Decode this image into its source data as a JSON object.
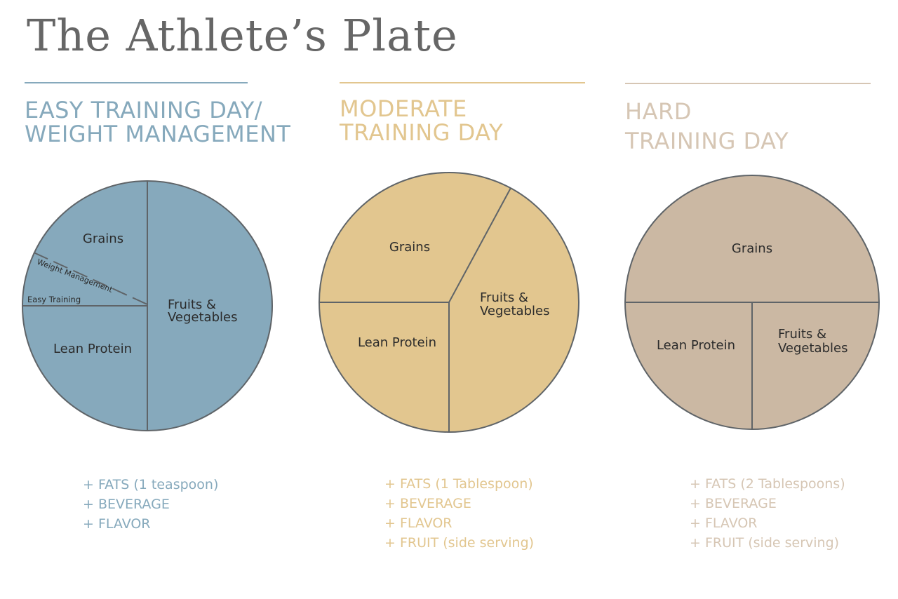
{
  "title": "The Athlete’s Plate",
  "plates": [
    {
      "heading": [
        "EASY TRAINING DAY/",
        "WEIGHT MANAGEMENT"
      ],
      "color": "#86a9bc",
      "text_color": "#86a9bc",
      "labels": {
        "grains": "Grains",
        "weight_management": "Weight Management",
        "easy_training": "Easy Training",
        "fruits_vegetables": [
          "Fruits &",
          "Vegetables"
        ],
        "lean_protein": "Lean Protein"
      },
      "extras": [
        "+ FATS (1 teaspoon)",
        "+ BEVERAGE",
        "+ FLAVOR"
      ]
    },
    {
      "heading": [
        "MODERATE",
        "TRAINING DAY"
      ],
      "color": "#e2c68f",
      "text_color": "#e2c68f",
      "labels": {
        "grains": "Grains",
        "fruits_vegetables": [
          "Fruits &",
          "Vegetables"
        ],
        "lean_protein": "Lean Protein"
      },
      "extras": [
        "+ FATS (1 Tablespoon)",
        "+ BEVERAGE",
        "+ FLAVOR",
        "+ FRUIT (side serving)"
      ]
    },
    {
      "heading": [
        "HARD",
        "TRAINING DAY"
      ],
      "color": "#cbb8a3",
      "text_color": "#d6c6b4",
      "labels": {
        "grains": "Grains",
        "lean_protein": "Lean Protein",
        "fruits_vegetables": [
          "Fruits &",
          "Vegetables"
        ]
      },
      "extras": [
        "+ FATS (2 Tablespoons)",
        "+ BEVERAGE",
        "+ FLAVOR",
        "+ FRUIT (side serving)"
      ]
    }
  ]
}
